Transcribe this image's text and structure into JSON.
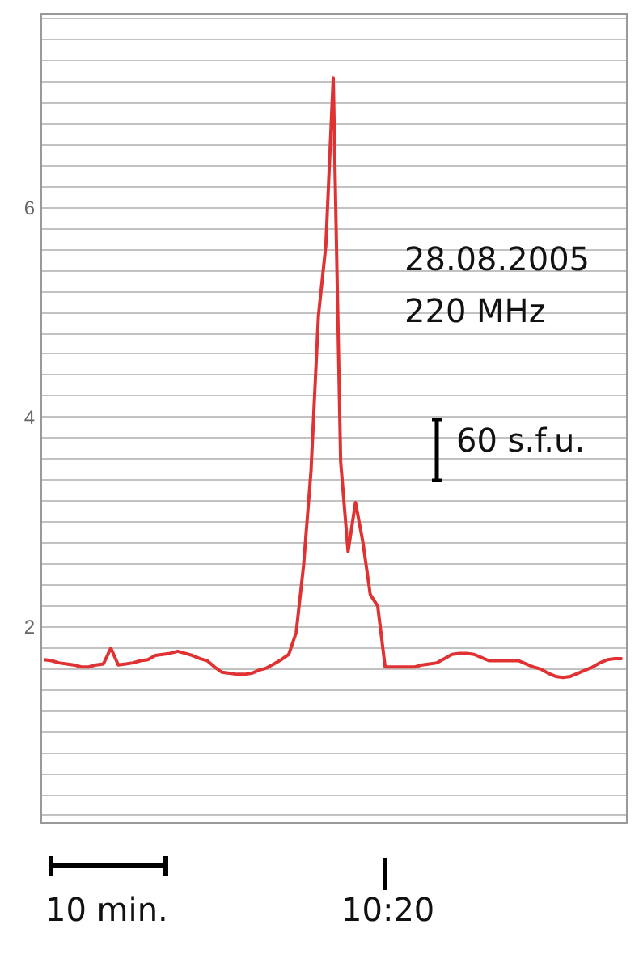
{
  "chart_data": {
    "type": "line",
    "annotations": [
      "28.08.2005",
      "220 MHz",
      "60 s.f.u.",
      "10 min.",
      "10:20"
    ],
    "categories": [
      null,
      null,
      null,
      null,
      null,
      null,
      null,
      null,
      null,
      null,
      null,
      null,
      null,
      null,
      null,
      null,
      null,
      null,
      null,
      null,
      null,
      null,
      null,
      null,
      null,
      null,
      null,
      null,
      null,
      null,
      null,
      null,
      null,
      null,
      null,
      null,
      null,
      null,
      null,
      null,
      null,
      null,
      null,
      null,
      null,
      null,
      null,
      null,
      null,
      null,
      null,
      null,
      null,
      null,
      null,
      null,
      null,
      null,
      null,
      null,
      null,
      null,
      null,
      null,
      null,
      null,
      null,
      null,
      null,
      null,
      null,
      null,
      null,
      null,
      null,
      null,
      null,
      null,
      null
    ],
    "series": [
      {
        "color": "#e03232",
        "values": [
          1.68,
          1.67,
          1.65,
          1.64,
          1.63,
          1.61,
          1.61,
          1.63,
          1.64,
          1.79,
          1.63,
          1.64,
          1.65,
          1.67,
          1.68,
          1.72,
          1.73,
          1.74,
          1.76,
          1.74,
          1.72,
          1.69,
          1.67,
          1.61,
          1.56,
          1.55,
          1.54,
          1.54,
          1.55,
          1.58,
          1.6,
          1.64,
          1.68,
          1.73,
          1.94,
          2.58,
          3.48,
          4.96,
          5.63,
          7.23,
          3.57,
          2.71,
          3.18,
          2.8,
          2.3,
          2.19,
          1.61,
          1.61,
          1.61,
          1.61,
          1.61,
          1.63,
          1.64,
          1.65,
          1.69,
          1.73,
          1.74,
          1.74,
          1.73,
          1.7,
          1.67,
          1.67,
          1.67,
          1.67,
          1.67,
          1.64,
          1.61,
          1.59,
          1.55,
          1.52,
          1.51,
          1.52,
          1.55,
          1.58,
          1.61,
          1.65,
          1.68,
          1.69,
          1.69
        ]
      }
    ],
    "ylim": [
      0.13,
      7.85
    ],
    "yticks": [
      {
        "value": 0.2,
        "label": null
      },
      {
        "value": 0.4,
        "label": null
      },
      {
        "value": 0.6,
        "label": null
      },
      {
        "value": 0.8,
        "label": null
      },
      {
        "value": 1,
        "label": null
      },
      {
        "value": 1.2,
        "label": null
      },
      {
        "value": 1.4,
        "label": null
      },
      {
        "value": 1.6,
        "label": null
      },
      {
        "value": 1.8,
        "label": null
      },
      {
        "value": 2,
        "label": "2"
      },
      {
        "value": 2.2,
        "label": null
      },
      {
        "value": 2.4,
        "label": null
      },
      {
        "value": 2.6,
        "label": null
      },
      {
        "value": 2.8,
        "label": null
      },
      {
        "value": 3,
        "label": null
      },
      {
        "value": 3.2,
        "label": null
      },
      {
        "value": 3.4,
        "label": null
      },
      {
        "value": 3.6,
        "label": null
      },
      {
        "value": 3.8,
        "label": null
      },
      {
        "value": 4,
        "label": "4"
      },
      {
        "value": 4.2,
        "label": null
      },
      {
        "value": 4.4,
        "label": null
      },
      {
        "value": 4.6,
        "label": null
      },
      {
        "value": 4.8,
        "label": null
      },
      {
        "value": 5,
        "label": null
      },
      {
        "value": 5.2,
        "label": null
      },
      {
        "value": 5.4,
        "label": null
      },
      {
        "value": 5.6,
        "label": null
      },
      {
        "value": 5.8,
        "label": null
      },
      {
        "value": 6,
        "label": "6"
      },
      {
        "value": 6.2,
        "label": null
      },
      {
        "value": 6.4,
        "label": null
      },
      {
        "value": 6.6,
        "label": null
      },
      {
        "value": 6.8,
        "label": null
      },
      {
        "value": 7,
        "label": null
      },
      {
        "value": 7.2,
        "label": null
      },
      {
        "value": 7.4,
        "label": null
      },
      {
        "value": 7.6,
        "label": null
      },
      {
        "value": 7.8,
        "label": null
      }
    ],
    "grid": "y",
    "tick_labels": "y",
    "marker": "none",
    "line_style": "solid"
  }
}
